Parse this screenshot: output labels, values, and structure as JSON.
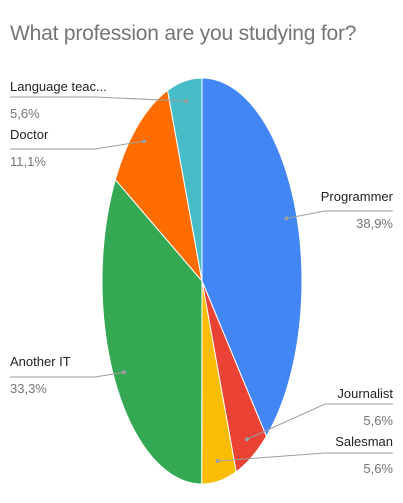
{
  "chart_data": {
    "type": "pie",
    "title": "What profession are you studying for?",
    "slices": [
      {
        "label": "Programmer",
        "value": 38.9,
        "value_label": "38,9%",
        "color": "#4285f4"
      },
      {
        "label": "Journalist",
        "value": 5.6,
        "value_label": "5,6%",
        "color": "#ea4335"
      },
      {
        "label": "Salesman",
        "value": 5.6,
        "value_label": "5,6%",
        "color": "#fbbc04"
      },
      {
        "label": "Another IT",
        "value": 33.3,
        "value_label": "33,3%",
        "color": "#34a853"
      },
      {
        "label": "Doctor",
        "value": 11.1,
        "value_label": "11,1%",
        "color": "#ff6d01"
      },
      {
        "label": "Language teac...",
        "value": 5.6,
        "value_label": "5,6%",
        "color": "#46bdc6"
      }
    ],
    "start_angle_deg": 0,
    "direction": "clockwise",
    "legend": "none",
    "labels": "outside with leader lines"
  }
}
